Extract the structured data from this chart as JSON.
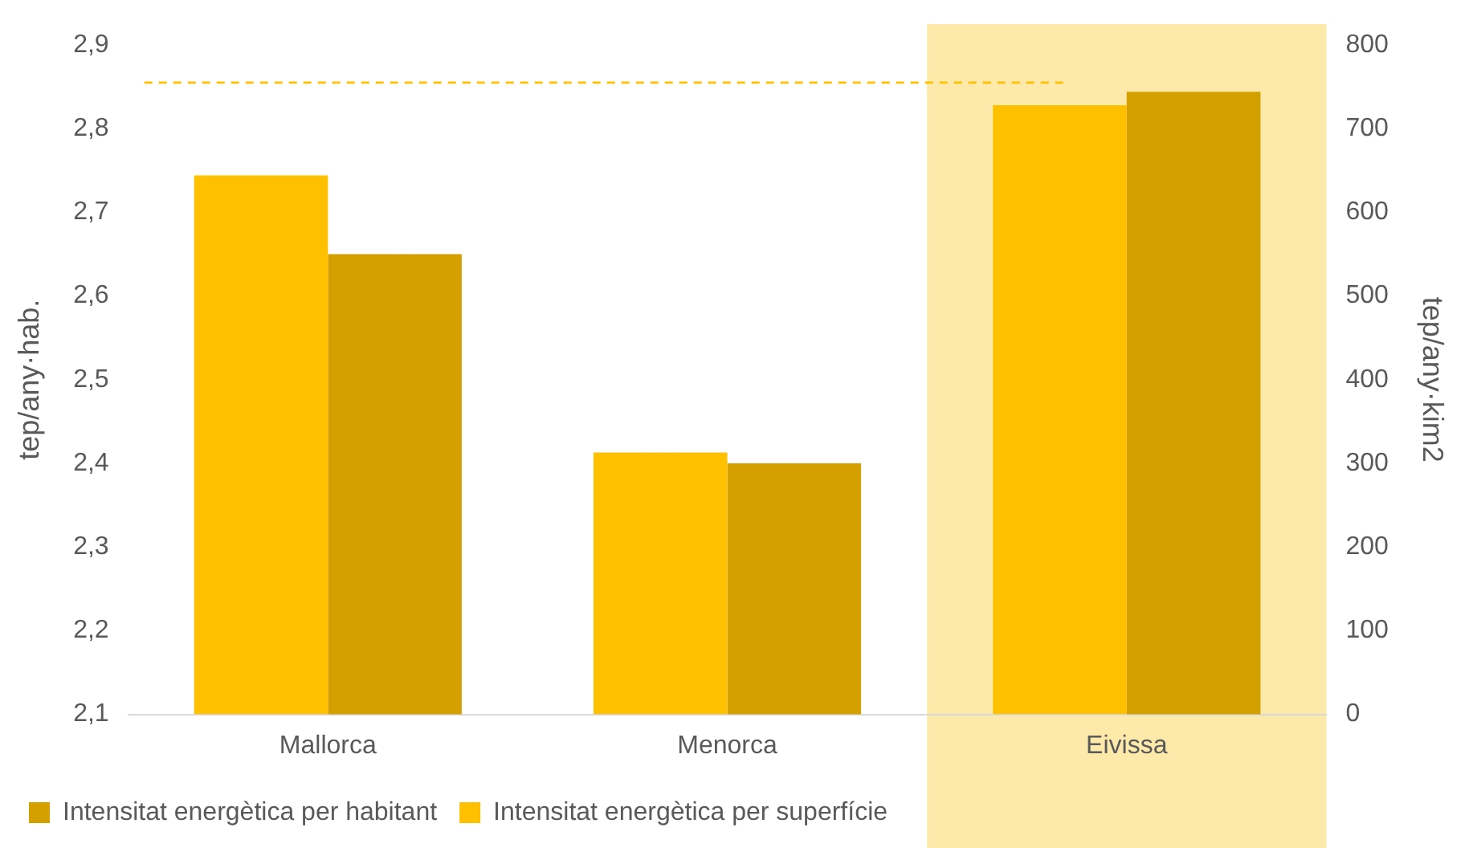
{
  "chart_data": {
    "type": "bar",
    "ylabel": "tep/any·hab.",
    "y2label": "tep/any·kim2",
    "categories": [
      "Mallorca",
      "Menorca",
      "Eivissa"
    ],
    "series": [
      {
        "name": "Intensitat energètica per superfície",
        "color": "#ffc000",
        "axis": "y2",
        "values": [
          644,
          313,
          728
        ]
      },
      {
        "name": "Intensitat energètica per habitant",
        "color": "#d4a000",
        "values": [
          2.65,
          2.4,
          2.844
        ]
      }
    ],
    "ylim": [
      2.1,
      2.9
    ],
    "yticks": [
      {
        "value": 2.1,
        "label": "2,1"
      },
      {
        "value": 2.2,
        "label": "2,2"
      },
      {
        "value": 2.3,
        "label": "2,3"
      },
      {
        "value": 2.4,
        "label": "2,4"
      },
      {
        "value": 2.5,
        "label": "2,5"
      },
      {
        "value": 2.6,
        "label": "2,6"
      },
      {
        "value": 2.7,
        "label": "2,7"
      },
      {
        "value": 2.8,
        "label": "2,8"
      },
      {
        "value": 2.9,
        "label": "2,9"
      }
    ],
    "y2lim": [
      0,
      800
    ],
    "y2ticks": [
      0,
      100,
      200,
      300,
      400,
      500,
      600,
      700,
      800
    ],
    "ref_lines": [
      {
        "axis": "y",
        "value": 2.855,
        "color": "#ffc000",
        "line_style": "dashed"
      }
    ],
    "bands": [
      {
        "axis": "x",
        "from": "Eivissa",
        "to": "Eivissa",
        "color": "#fde9a9"
      }
    ],
    "grid": false,
    "legend": "bottom"
  }
}
